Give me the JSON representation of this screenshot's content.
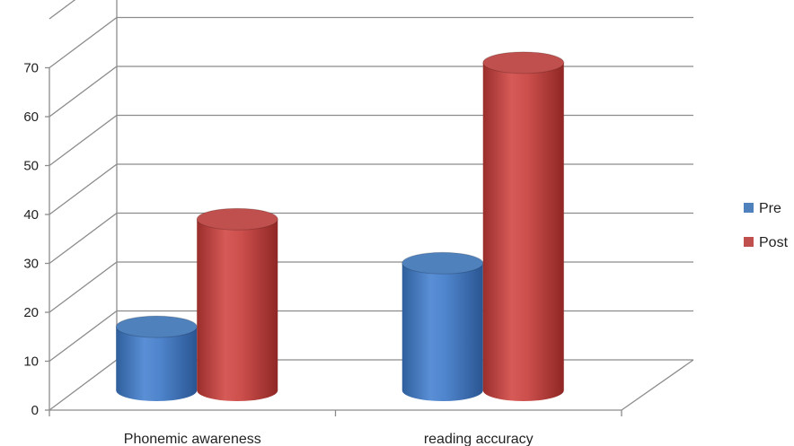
{
  "chart_data": {
    "type": "bar",
    "style": "3d-cylinder",
    "categories": [
      "Phonemic awareness",
      "reading accuracy"
    ],
    "series": [
      {
        "name": "Pre",
        "values": [
          13,
          26
        ],
        "color": "#4F81BD"
      },
      {
        "name": "Post",
        "values": [
          35,
          67
        ],
        "color": "#C0504D"
      }
    ],
    "ylim": [
      0,
      70
    ],
    "y_ticks": [
      "0",
      "10",
      "20",
      "30",
      "40",
      "50",
      "60",
      "70"
    ],
    "grid": true,
    "legend_position": "right",
    "title": "",
    "xlabel": "",
    "ylabel": ""
  }
}
